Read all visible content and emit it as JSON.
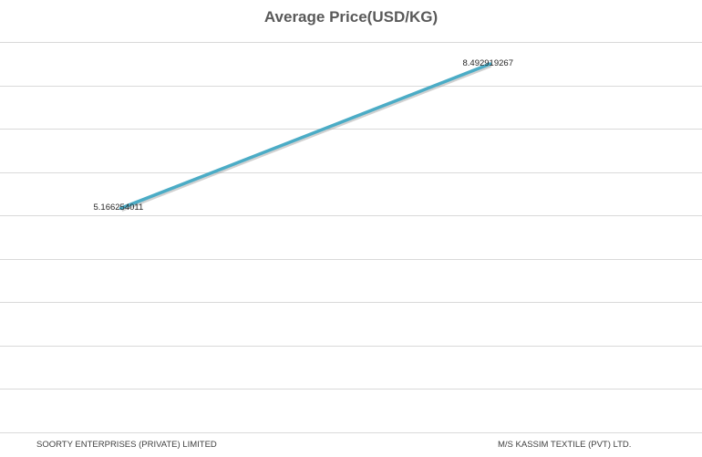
{
  "chart_data": {
    "type": "line",
    "title": "Average Price(USD/KG)",
    "categories": [
      "SOORTY ENTERPRISES (PRIVATE) LIMITED",
      "M/S KASSIM TEXTILE (PVT) LTD."
    ],
    "series": [
      {
        "values": [
          5.166254011,
          8.492919267
        ],
        "data_labels": [
          "5.166254011",
          "8.492919267"
        ]
      }
    ],
    "ylim": [
      0,
      9
    ],
    "grid": true,
    "line_color": "#4BACC6"
  }
}
